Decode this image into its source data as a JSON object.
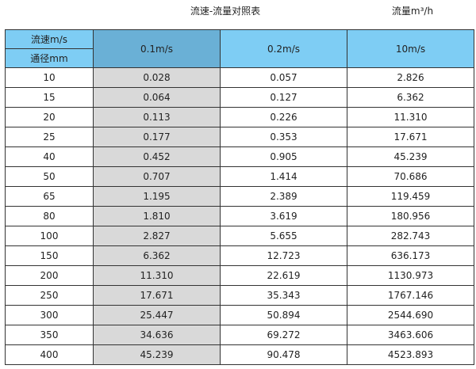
{
  "title": "流速-流量对照表",
  "unit_label": "流量m³/h",
  "colors": {
    "header": "#7ecdf4",
    "header_highlight": "#6ab0d6",
    "column_highlight": "#d9d9d9"
  },
  "header": {
    "corner_top": "流速m/s",
    "corner_bottom": "通径mm",
    "columns": [
      "0.1m/s",
      "0.2m/s",
      "10m/s"
    ]
  },
  "rows": [
    [
      "10",
      "0.028",
      "0.057",
      "2.826"
    ],
    [
      "15",
      "0.064",
      "0.127",
      "6.362"
    ],
    [
      "20",
      "0.113",
      "0.226",
      "11.310"
    ],
    [
      "25",
      "0.177",
      "0.353",
      "17.671"
    ],
    [
      "40",
      "0.452",
      "0.905",
      "45.239"
    ],
    [
      "50",
      "0.707",
      "1.414",
      "70.686"
    ],
    [
      "65",
      "1.195",
      "2.389",
      "119.459"
    ],
    [
      "80",
      "1.810",
      "3.619",
      "180.956"
    ],
    [
      "100",
      "2.827",
      "5.655",
      "282.743"
    ],
    [
      "150",
      "6.362",
      "12.723",
      "636.173"
    ],
    [
      "200",
      "11.310",
      "22.619",
      "1130.973"
    ],
    [
      "250",
      "17.671",
      "35.343",
      "1767.146"
    ],
    [
      "300",
      "25.447",
      "50.894",
      "2544.690"
    ],
    [
      "350",
      "34.636",
      "69.272",
      "3463.606"
    ],
    [
      "400",
      "45.239",
      "90.478",
      "4523.893"
    ]
  ]
}
